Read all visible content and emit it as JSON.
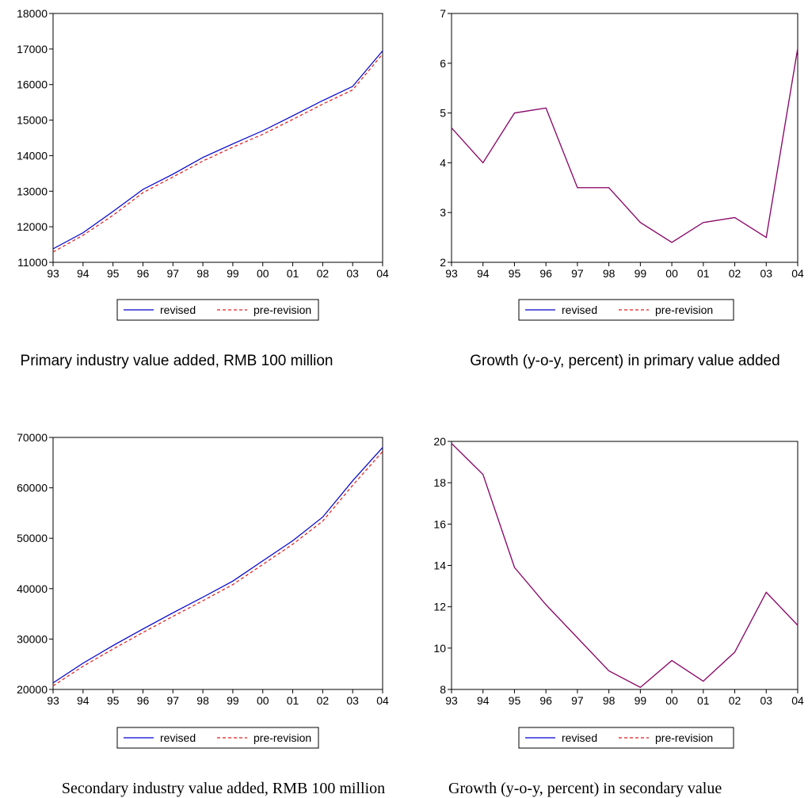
{
  "chart_data": [
    {
      "type": "line",
      "caption": "Primary industry value added, RMB 100 million",
      "x": [
        "93",
        "94",
        "95",
        "96",
        "97",
        "98",
        "99",
        "00",
        "01",
        "02",
        "03",
        "04"
      ],
      "ylim": [
        11000,
        18000
      ],
      "yticks": [
        11000,
        12000,
        13000,
        14000,
        15000,
        16000,
        17000,
        18000
      ],
      "legend": "bottom-center",
      "grid": false,
      "series": [
        {
          "name": "revised",
          "color": "#0000cc",
          "style": "solid",
          "values": [
            11380,
            11830,
            12430,
            13050,
            13480,
            13950,
            14330,
            14700,
            15120,
            15550,
            15950,
            16950
          ]
        },
        {
          "name": "pre-revision",
          "color": "#e41a1c",
          "style": "dashed",
          "values": [
            11290,
            11760,
            12320,
            12960,
            13400,
            13850,
            14240,
            14600,
            15020,
            15450,
            15850,
            16860
          ]
        }
      ]
    },
    {
      "type": "line",
      "caption": "Growth (y-o-y, percent) in primary value added",
      "x": [
        "93",
        "94",
        "95",
        "96",
        "97",
        "98",
        "99",
        "00",
        "01",
        "02",
        "03",
        "04"
      ],
      "ylim": [
        2,
        7
      ],
      "yticks": [
        2,
        3,
        4,
        5,
        6,
        7
      ],
      "legend": "bottom-center",
      "grid": false,
      "series": [
        {
          "name": "revised",
          "color": "#0000cc",
          "style": "solid",
          "values": [
            4.7,
            4.0,
            5.0,
            5.1,
            3.5,
            3.5,
            2.8,
            2.4,
            2.8,
            2.9,
            2.5,
            6.3
          ]
        },
        {
          "name": "pre-revision",
          "color": "#e41a1c",
          "style": "dashed",
          "values": [
            4.7,
            4.0,
            5.0,
            5.1,
            3.5,
            3.5,
            2.8,
            2.4,
            2.8,
            2.9,
            2.5,
            6.3
          ]
        }
      ]
    },
    {
      "type": "line",
      "caption": "Secondary industry value added, RMB 100 million",
      "x": [
        "93",
        "94",
        "95",
        "96",
        "97",
        "98",
        "99",
        "00",
        "01",
        "02",
        "03",
        "04"
      ],
      "ylim": [
        20000,
        70000
      ],
      "yticks": [
        20000,
        30000,
        40000,
        50000,
        60000,
        70000
      ],
      "legend": "bottom-center",
      "grid": false,
      "series": [
        {
          "name": "revised",
          "color": "#0000cc",
          "style": "solid",
          "values": [
            21300,
            25200,
            28700,
            32000,
            35200,
            38300,
            41500,
            45500,
            49500,
            54200,
            61400,
            68000
          ]
        },
        {
          "name": "pre-revision",
          "color": "#e41a1c",
          "style": "dashed",
          "values": [
            20700,
            24600,
            28000,
            31300,
            34500,
            37600,
            40800,
            44800,
            48800,
            53400,
            60500,
            67200
          ]
        }
      ]
    },
    {
      "type": "line",
      "caption": "Growth (y-o-y, percent) in secondary value",
      "x": [
        "93",
        "94",
        "95",
        "96",
        "97",
        "98",
        "99",
        "00",
        "01",
        "02",
        "03",
        "04"
      ],
      "ylim": [
        8,
        20
      ],
      "yticks": [
        8,
        10,
        12,
        14,
        16,
        18,
        20
      ],
      "legend": "bottom-center",
      "grid": false,
      "series": [
        {
          "name": "revised",
          "color": "#0000cc",
          "style": "solid",
          "values": [
            19.9,
            18.4,
            13.9,
            12.1,
            10.5,
            8.9,
            8.1,
            9.4,
            8.4,
            9.8,
            12.7,
            11.1
          ]
        },
        {
          "name": "pre-revision",
          "color": "#e41a1c",
          "style": "dashed",
          "values": [
            19.9,
            18.4,
            13.9,
            12.1,
            10.5,
            8.9,
            8.1,
            9.4,
            8.4,
            9.8,
            12.7,
            11.1
          ]
        }
      ]
    }
  ]
}
